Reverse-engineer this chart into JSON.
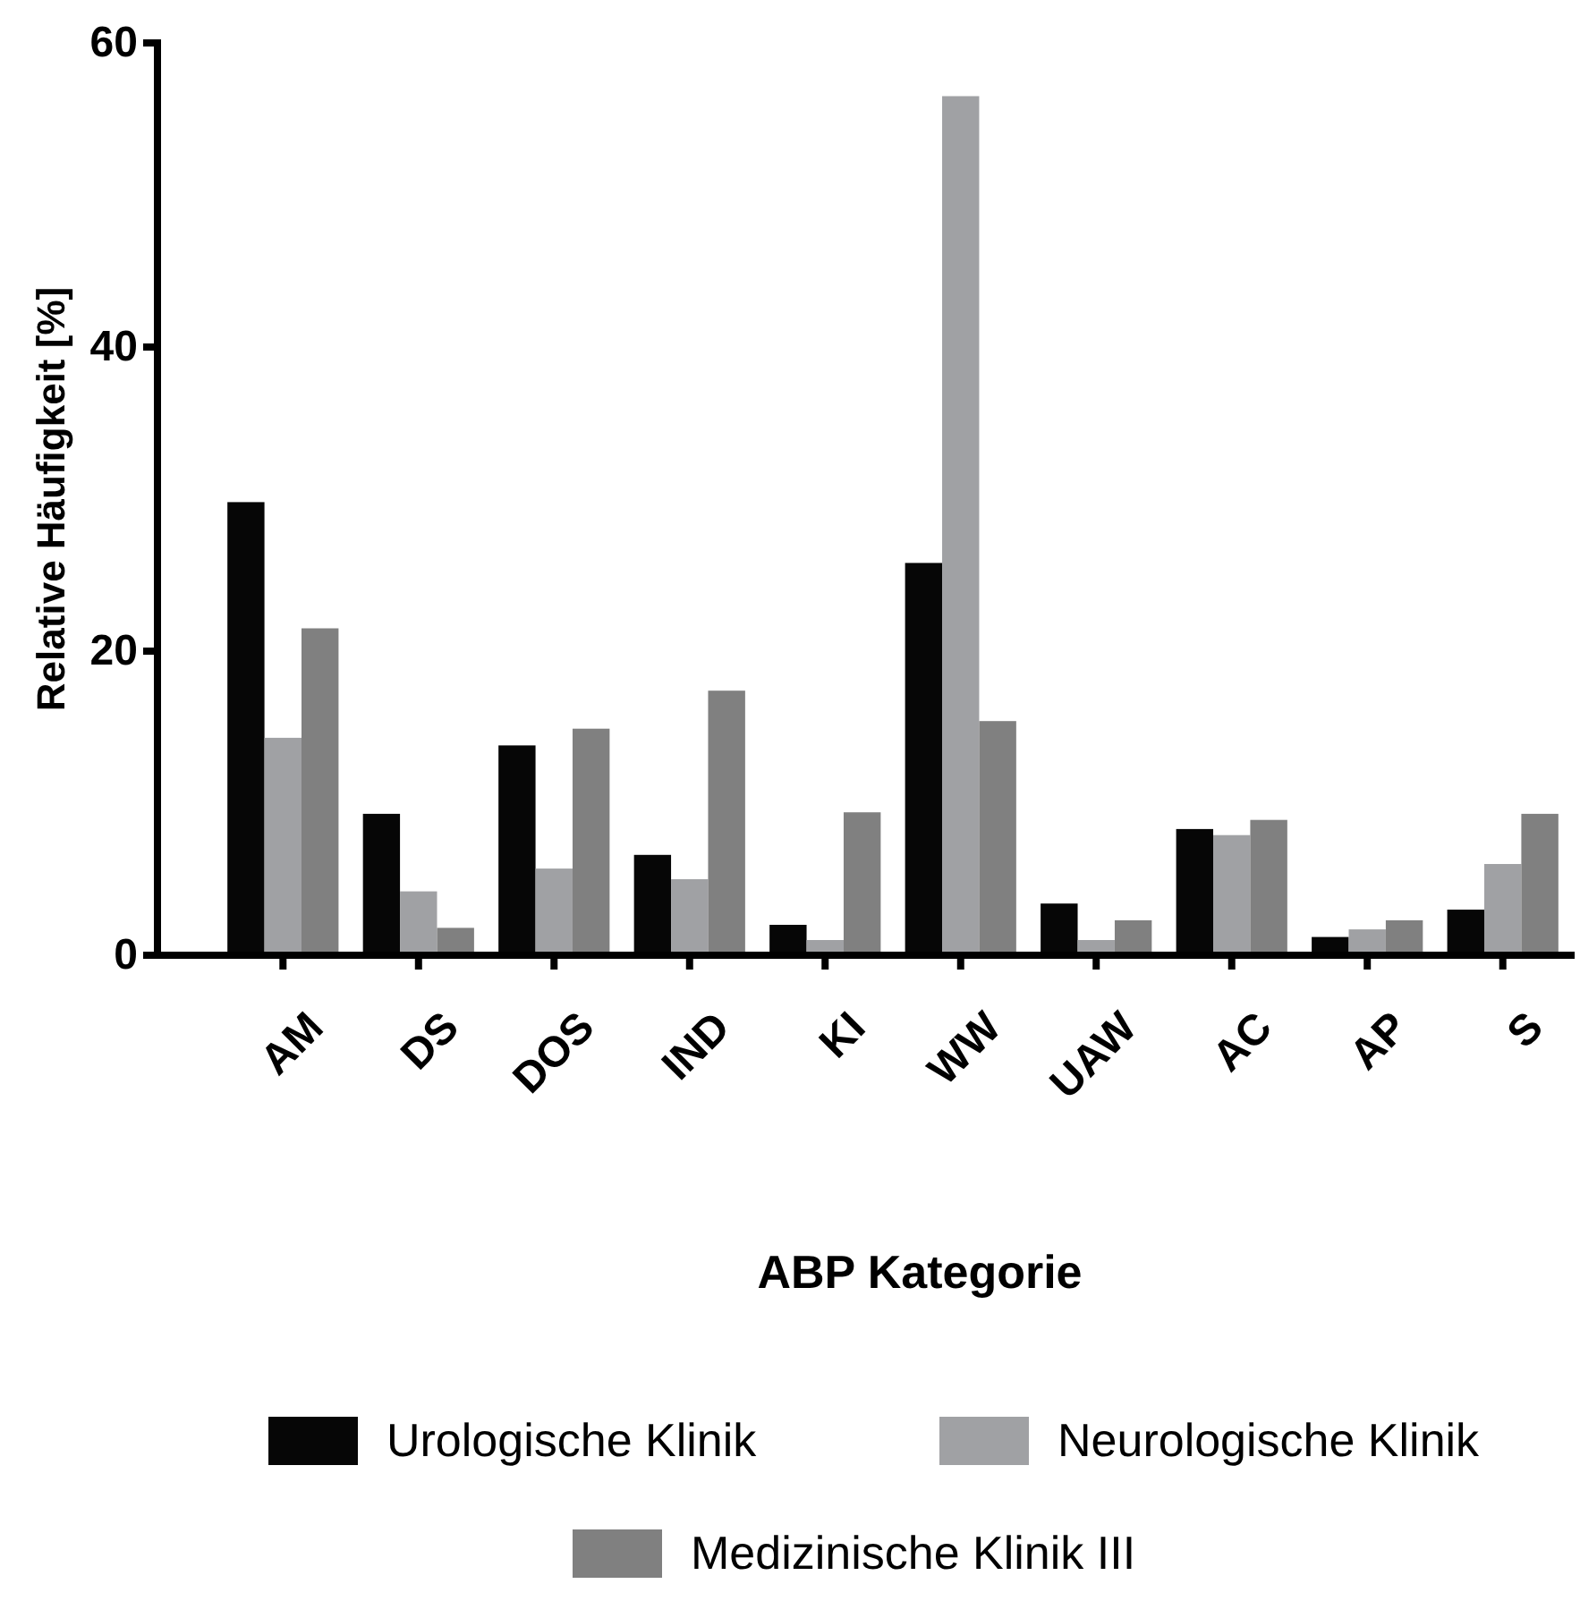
{
  "chart_data": {
    "type": "bar",
    "xlabel": "ABP Kategorie",
    "ylabel": "Relative Häufigkeit [%]",
    "categories": [
      "AM",
      "DS",
      "DOS",
      "IND",
      "KI",
      "WW",
      "UAW",
      "AC",
      "AP",
      "S"
    ],
    "series": [
      {
        "name": "Urologische Klinik",
        "color": "#060606",
        "values": [
          29.8,
          9.3,
          13.8,
          6.6,
          2.0,
          25.8,
          3.4,
          8.3,
          1.2,
          3.0
        ]
      },
      {
        "name": "Neurologische Klinik",
        "color": "#a0a1a4",
        "values": [
          14.3,
          4.2,
          5.7,
          5.0,
          1.0,
          56.5,
          1.0,
          7.9,
          1.7,
          6.0
        ]
      },
      {
        "name": "Medizinische Klinik III",
        "color": "#808080",
        "values": [
          21.5,
          1.8,
          14.9,
          17.4,
          9.4,
          15.4,
          2.3,
          8.9,
          2.3,
          9.3
        ]
      }
    ],
    "ylim": [
      0,
      60
    ],
    "yticks": [
      0,
      20,
      40,
      60
    ],
    "grid": false,
    "legend": "bottom"
  }
}
